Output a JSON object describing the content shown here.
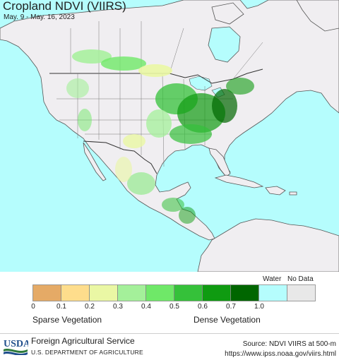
{
  "title": "Cropland NDVI (VIIRS)",
  "subtitle": "May. 9 - May. 16, 2023",
  "colors": {
    "ocean": "#b5fdfd",
    "land": "#f0eef1",
    "border": "#555555",
    "state_border": "#777777"
  },
  "legend": {
    "special_labels": [
      "Water",
      "No Data"
    ],
    "swatch_colors": [
      "#e5aa66",
      "#fedd8c",
      "#eaf7a4",
      "#a4f09a",
      "#6fe868",
      "#35c13a",
      "#0f9b11",
      "#006600",
      "#b5fdfd",
      "#e8e8e8"
    ],
    "tick_labels": [
      "0",
      "0.1",
      "0.2",
      "0.3",
      "0.4",
      "0.5",
      "0.6",
      "0.7",
      "1.0"
    ],
    "low_caption": "Sparse Vegetation",
    "high_caption": "Dense Vegetation"
  },
  "footer": {
    "logo_text": "USDA",
    "agency": "Foreign Agricultural Service",
    "department": "U.S. DEPARTMENT OF AGRICULTURE",
    "source_line1": "Source: NDVI VIIRS at 500-m",
    "source_line2": "https://www.ipss.noaa.gov/viirs.html"
  }
}
